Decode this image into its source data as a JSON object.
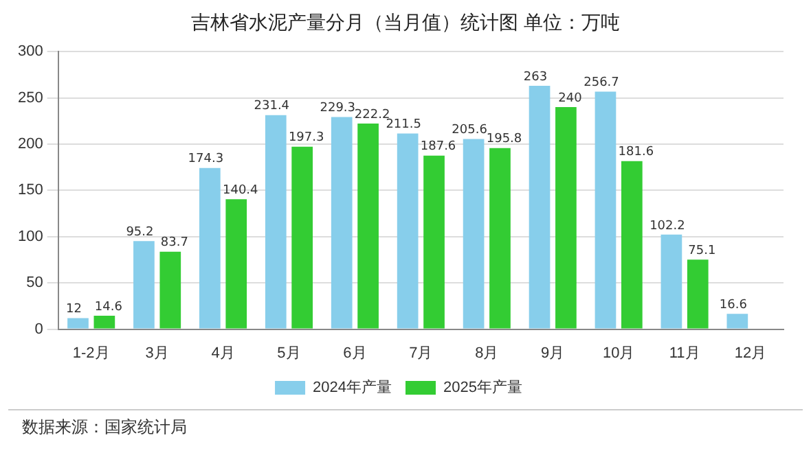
{
  "chart_data": {
    "type": "bar",
    "title": "吉林省水泥产量分月（当月值）统计图  单位：万吨",
    "categories": [
      "1-2月",
      "3月",
      "4月",
      "5月",
      "6月",
      "7月",
      "8月",
      "9月",
      "10月",
      "11月",
      "12月"
    ],
    "series": [
      {
        "name": "2024年产量",
        "color": "#87ceeb",
        "values": [
          12,
          95.2,
          174.3,
          231.4,
          229.3,
          211.5,
          205.6,
          263,
          256.7,
          102.2,
          16.6
        ]
      },
      {
        "name": "2025年产量",
        "color": "#33cc33",
        "values": [
          14.6,
          83.7,
          140.4,
          197.3,
          222.2,
          187.6,
          195.8,
          240,
          181.6,
          75.1,
          null
        ]
      }
    ],
    "ylim": [
      0,
      300
    ],
    "yticks": [
      0,
      50,
      100,
      150,
      200,
      250,
      300
    ],
    "grid": "y",
    "legend": "bottom",
    "data_labels": true,
    "annotations": [
      "数据来源：国家统计局"
    ]
  }
}
